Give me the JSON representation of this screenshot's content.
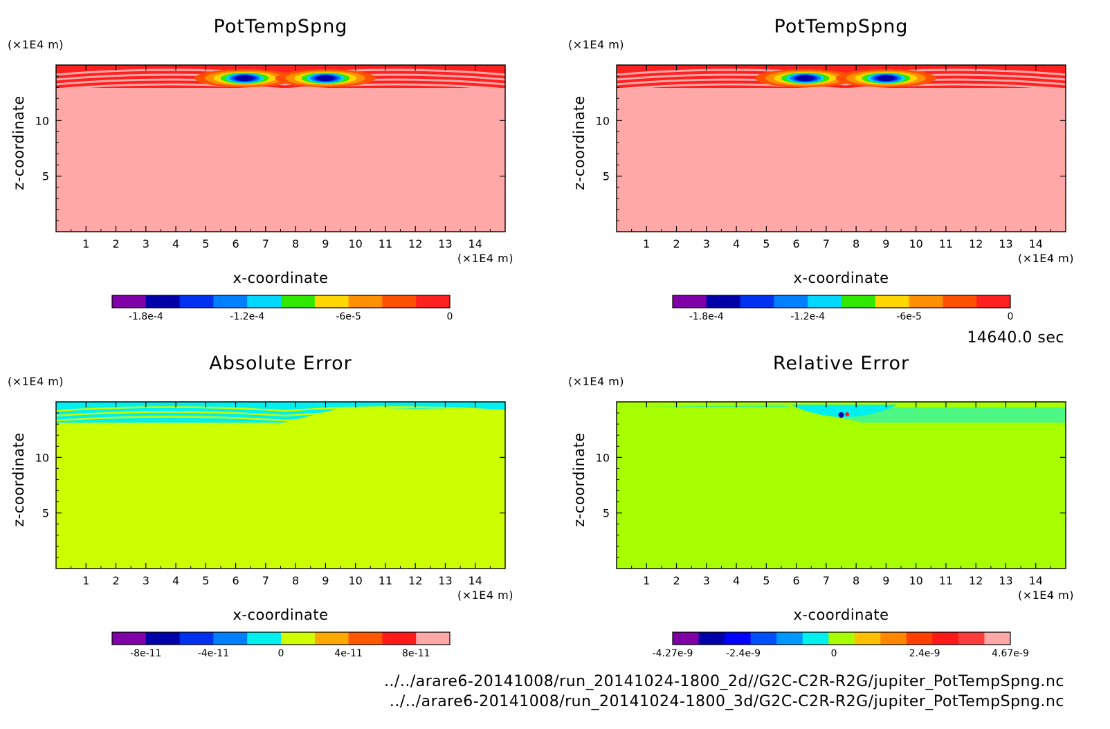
{
  "time_label": "14640.0 sec",
  "file_paths": [
    "../../arare6-20141008/run_20141024-1800_2d//G2C-C2R-R2G/jupiter_PotTempSpng.nc",
    "../../arare6-20141008/run_20141024-1800_3d/G2C-C2R-R2G/jupiter_PotTempSpng.nc"
  ],
  "chart_data": [
    {
      "type": "heatmap",
      "title": "PotTempSpng",
      "xlabel": "x-coordinate",
      "ylabel": "z-coordinate",
      "x_unit": "(×1E4 m)",
      "y_unit": "(×1E4 m)",
      "xlim": [
        0,
        15
      ],
      "ylim": [
        0,
        15
      ],
      "x_ticks": [
        "1",
        "2",
        "3",
        "4",
        "5",
        "6",
        "7",
        "8",
        "9",
        "10",
        "11",
        "12",
        "13",
        "14"
      ],
      "y_ticks": [
        "5",
        "10"
      ],
      "colorbar": {
        "colors": [
          "#7f00a6",
          "#0000a8",
          "#0030f0",
          "#0080ff",
          "#00d8ff",
          "#30e800",
          "#ffd800",
          "#ff9000",
          "#ff5000",
          "#ff2020"
        ],
        "tick_labels": [
          "-1.8e-4",
          "-1.2e-4",
          "-6e-5",
          "0"
        ],
        "tick_values": [
          -0.00018,
          -0.00012,
          -6e-05,
          0
        ],
        "range": [
          -0.0002,
          0
        ]
      },
      "background_color": "#ffa8a8",
      "pattern": "sponge"
    },
    {
      "type": "heatmap",
      "title": "PotTempSpng",
      "xlabel": "x-coordinate",
      "ylabel": "z-coordinate",
      "x_unit": "(×1E4 m)",
      "y_unit": "(×1E4 m)",
      "xlim": [
        0,
        15
      ],
      "ylim": [
        0,
        15
      ],
      "x_ticks": [
        "1",
        "2",
        "3",
        "4",
        "5",
        "6",
        "7",
        "8",
        "9",
        "10",
        "11",
        "12",
        "13",
        "14"
      ],
      "y_ticks": [
        "5",
        "10"
      ],
      "colorbar": {
        "colors": [
          "#7f00a6",
          "#0000a8",
          "#0030f0",
          "#0080ff",
          "#00d8ff",
          "#30e800",
          "#ffd800",
          "#ff9000",
          "#ff5000",
          "#ff2020"
        ],
        "tick_labels": [
          "-1.8e-4",
          "-1.2e-4",
          "-6e-5",
          "0"
        ],
        "tick_values": [
          -0.00018,
          -0.00012,
          -6e-05,
          0
        ],
        "range": [
          -0.0002,
          0
        ]
      },
      "background_color": "#ffa8a8",
      "pattern": "sponge"
    },
    {
      "type": "heatmap",
      "title": "Absolute Error",
      "xlabel": "x-coordinate",
      "ylabel": "z-coordinate",
      "x_unit": "(×1E4 m)",
      "y_unit": "(×1E4 m)",
      "xlim": [
        0,
        15
      ],
      "ylim": [
        0,
        15
      ],
      "x_ticks": [
        "1",
        "2",
        "3",
        "4",
        "5",
        "6",
        "7",
        "8",
        "9",
        "10",
        "11",
        "12",
        "13",
        "14"
      ],
      "y_ticks": [
        "5",
        "10"
      ],
      "colorbar": {
        "colors": [
          "#7f00a6",
          "#0000a8",
          "#0030f0",
          "#0080ff",
          "#00f0f0",
          "#d0ff00",
          "#ffa800",
          "#ff5800",
          "#ff1818",
          "#ffa8a8"
        ],
        "tick_labels": [
          "-8e-11",
          "-4e-11",
          "0",
          "4e-11",
          "8e-11"
        ],
        "tick_values": [
          -8e-11,
          -4e-11,
          0,
          4e-11,
          8e-11
        ],
        "range": [
          -1e-10,
          1e-10
        ]
      },
      "background_color": "#ccff00",
      "pattern": "abs"
    },
    {
      "type": "heatmap",
      "title": "Relative Error",
      "xlabel": "x-coordinate",
      "ylabel": "z-coordinate",
      "x_unit": "(×1E4 m)",
      "y_unit": "(×1E4 m)",
      "xlim": [
        0,
        15
      ],
      "ylim": [
        0,
        15
      ],
      "x_ticks": [
        "1",
        "2",
        "3",
        "4",
        "5",
        "6",
        "7",
        "8",
        "9",
        "10",
        "11",
        "12",
        "13",
        "14"
      ],
      "y_ticks": [
        "5",
        "10"
      ],
      "colorbar": {
        "colors": [
          "#7f00a6",
          "#0000a8",
          "#0000ff",
          "#0050ff",
          "#0098ff",
          "#00f0f0",
          "#a8ff00",
          "#ffc000",
          "#ff8800",
          "#ff4000",
          "#ff1818",
          "#ff3c3c",
          "#ffa8a8"
        ],
        "tick_labels": [
          "-4.27e-9",
          "-2.4e-9",
          "0",
          "2.4e-9",
          "4.67e-9"
        ],
        "tick_values": [
          -4.27e-09,
          -2.4e-09,
          0,
          2.4e-09,
          4.67e-09
        ],
        "range": [
          -4.27e-09,
          4.67e-09
        ]
      },
      "background_color": "#a8ff00",
      "pattern": "rel"
    }
  ]
}
